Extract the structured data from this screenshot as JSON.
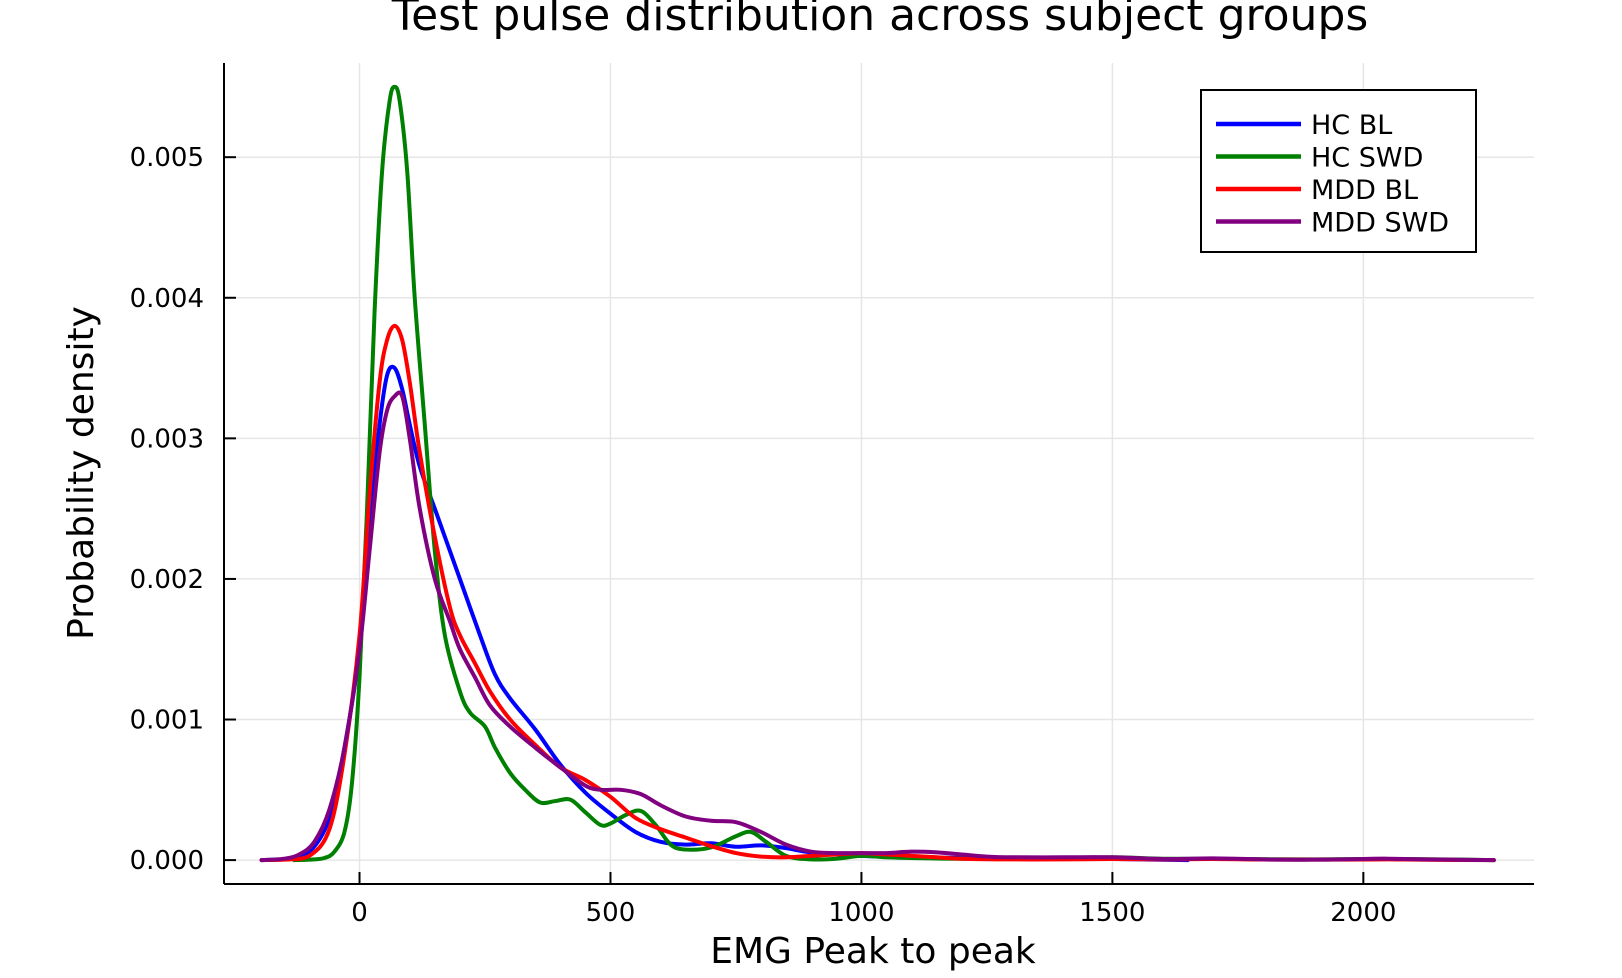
{
  "chart_data": {
    "type": "line",
    "title": "Test pulse distribution across subject groups",
    "xlabel": "EMG Peak to peak",
    "ylabel": "Probability density",
    "xlim": [
      -270,
      2340
    ],
    "ylim": [
      -0.00017,
      0.00567
    ],
    "xticks": [
      0,
      500,
      1000,
      1500,
      2000
    ],
    "xtick_labels": [
      "0",
      "500",
      "1000",
      "1500",
      "2000"
    ],
    "yticks": [
      0.0,
      0.001,
      0.002,
      0.003,
      0.004,
      0.005
    ],
    "ytick_labels": [
      "0.000",
      "0.001",
      "0.002",
      "0.003",
      "0.004",
      "0.005"
    ],
    "grid": true,
    "legend_position": "top-right",
    "series": [
      {
        "name": "HC BL",
        "color": "#0000ff",
        "x": [
          -195,
          -150,
          -100,
          -60,
          -30,
          0,
          20,
          40,
          55,
          70,
          85,
          100,
          120,
          150,
          170,
          200,
          240,
          270,
          300,
          350,
          400,
          450,
          500,
          550,
          600,
          650,
          700,
          750,
          800,
          850,
          900,
          1000,
          1100,
          1200,
          1300,
          1400,
          1500,
          1650
        ],
        "y": [
          0.0,
          5e-06,
          6e-05,
          0.0003,
          0.0008,
          0.0015,
          0.0024,
          0.0031,
          0.00345,
          0.0035,
          0.00335,
          0.0031,
          0.0028,
          0.0025,
          0.0023,
          0.002,
          0.0016,
          0.00132,
          0.00115,
          0.00093,
          0.00068,
          0.00048,
          0.00033,
          0.0002,
          0.00013,
          0.00011,
          0.00012,
          9.5e-05,
          0.000105,
          8.5e-05,
          5.5e-05,
          3e-05,
          2e-05,
          1.5e-05,
          1e-05,
          1.2e-05,
          8e-06,
          0.0
        ]
      },
      {
        "name": "HC SWD",
        "color": "#008000",
        "x": [
          -130,
          -100,
          -70,
          -50,
          -30,
          -15,
          0,
          15,
          30,
          45,
          60,
          70,
          80,
          95,
          110,
          130,
          150,
          170,
          200,
          220,
          250,
          270,
          300,
          330,
          360,
          390,
          420,
          450,
          480,
          500,
          530,
          560,
          590,
          620,
          650,
          700,
          750,
          780,
          810,
          850,
          900,
          950,
          1000,
          1050,
          1100,
          1200,
          1300,
          1400,
          1500,
          1600,
          1750,
          1900,
          2050,
          2200,
          2260
        ],
        "y": [
          0.0,
          3e-06,
          1.5e-05,
          6e-05,
          0.0002,
          0.00055,
          0.0013,
          0.0025,
          0.0039,
          0.0049,
          0.0054,
          0.0055,
          0.0054,
          0.0049,
          0.004,
          0.0031,
          0.0022,
          0.0016,
          0.0012,
          0.00105,
          0.00095,
          0.0008,
          0.00062,
          0.0005,
          0.00041,
          0.00042,
          0.00043,
          0.00034,
          0.00025,
          0.00026,
          0.00032,
          0.00035,
          0.00025,
          0.00011,
          7.5e-05,
          9e-05,
          0.00017,
          0.0002,
          0.00013,
          3e-05,
          5e-06,
          1e-05,
          3e-05,
          2e-05,
          1.5e-05,
          1e-05,
          1.5e-05,
          1e-05,
          2e-05,
          1e-05,
          8e-06,
          5e-06,
          8e-06,
          3e-06,
          0.0
        ]
      },
      {
        "name": "MDD BL",
        "color": "#ff0000",
        "x": [
          -195,
          -150,
          -100,
          -60,
          -30,
          0,
          20,
          40,
          55,
          70,
          85,
          100,
          120,
          150,
          180,
          200,
          230,
          260,
          300,
          350,
          400,
          450,
          500,
          550,
          600,
          650,
          700,
          750,
          800,
          850,
          900,
          950,
          1000,
          1050,
          1100,
          1150,
          1200,
          1300,
          1400,
          1500,
          1600,
          1700,
          1800,
          1950,
          2050,
          2150,
          2260
        ],
        "y": [
          0.0,
          3e-06,
          3e-05,
          0.00022,
          0.00075,
          0.0016,
          0.0026,
          0.0034,
          0.0037,
          0.0038,
          0.0037,
          0.0034,
          0.0029,
          0.0023,
          0.0018,
          0.0016,
          0.0014,
          0.0012,
          0.001,
          0.00082,
          0.00066,
          0.00057,
          0.00045,
          0.0003,
          0.00022,
          0.00016,
          0.0001,
          5e-05,
          2.5e-05,
          2e-05,
          3e-05,
          4e-05,
          5e-05,
          4e-05,
          3e-05,
          2e-05,
          1e-05,
          5e-06,
          5e-06,
          8e-06,
          5e-06,
          8e-06,
          4e-06,
          3e-06,
          5e-06,
          2e-06,
          0.0
        ]
      },
      {
        "name": "MDD SWD",
        "color": "#800080",
        "x": [
          -195,
          -150,
          -120,
          -90,
          -60,
          -30,
          0,
          20,
          40,
          55,
          70,
          85,
          100,
          120,
          150,
          180,
          200,
          230,
          260,
          300,
          350,
          400,
          450,
          480,
          520,
          560,
          600,
          650,
          700,
          750,
          800,
          850,
          900,
          950,
          1000,
          1050,
          1100,
          1150,
          1200,
          1250,
          1300,
          1400,
          1500,
          1600,
          1700,
          1800,
          1900,
          2000,
          2050,
          2150,
          2260
        ],
        "y": [
          0.0,
          1e-05,
          4e-05,
          0.00013,
          0.00036,
          0.0008,
          0.0015,
          0.0022,
          0.0029,
          0.0032,
          0.0033,
          0.0033,
          0.003,
          0.0025,
          0.002,
          0.0017,
          0.0015,
          0.0013,
          0.0011,
          0.00095,
          0.0008,
          0.00066,
          0.00053,
          0.0005,
          0.0005,
          0.00047,
          0.00039,
          0.00031,
          0.00028,
          0.00027,
          0.0002,
          0.00011,
          6e-05,
          5e-05,
          5e-05,
          5e-05,
          6e-05,
          5.5e-05,
          4e-05,
          2.5e-05,
          2e-05,
          2e-05,
          2e-05,
          8e-06,
          1.2e-05,
          5e-06,
          3e-06,
          8e-06,
          1e-05,
          4e-06,
          0.0
        ]
      }
    ]
  }
}
